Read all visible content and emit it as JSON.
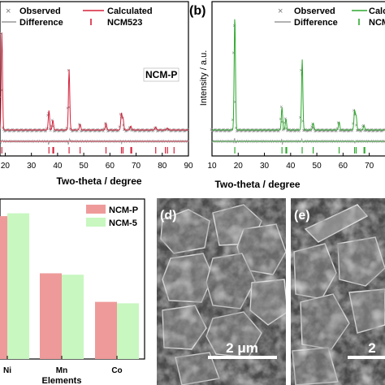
{
  "panel_a": {
    "legend": {
      "observed": "Observed",
      "calculated": "Calculated",
      "difference": "Difference",
      "phase": "NCM523"
    },
    "sample_label": "NCM-P",
    "xlabel": "Two-theta / degree",
    "xticks": [
      "20",
      "30",
      "40",
      "50",
      "60",
      "70",
      "80",
      "90"
    ]
  },
  "panel_b": {
    "panel_letter": "(b)",
    "legend": {
      "observed": "Observed",
      "calculated": "Calcu",
      "difference": "Difference",
      "phase": "NCM"
    },
    "ylabel": "Intensity / a.u.",
    "xlabel": "Two-theta / degree",
    "xticks": [
      "10",
      "20",
      "30",
      "40",
      "50",
      "60",
      "70"
    ]
  },
  "panel_c": {
    "xlabel": "Elements",
    "chart_data": {
      "type": "bar",
      "categories": [
        "Ni",
        "Mn",
        "Co"
      ],
      "series": [
        {
          "name": "NCM-P",
          "values": [
            0.5,
            0.3,
            0.2
          ],
          "color": "#ef9a9a"
        },
        {
          "name": "NCM-5",
          "values": [
            0.51,
            0.295,
            0.195
          ],
          "color": "#c8f7c0"
        }
      ],
      "ylim": [
        0,
        0.56
      ],
      "xlabel": "Elements",
      "ylabel": ""
    }
  },
  "panel_d": {
    "panel_letter": "(d)",
    "scale_bar": "2 μm"
  },
  "panel_e": {
    "panel_letter": "(e)",
    "scale_bar": "2"
  },
  "colors": {
    "observed": "#888888",
    "calc_a": "#d6203a",
    "calc_b": "#2ea82e",
    "diff": "#999999"
  }
}
